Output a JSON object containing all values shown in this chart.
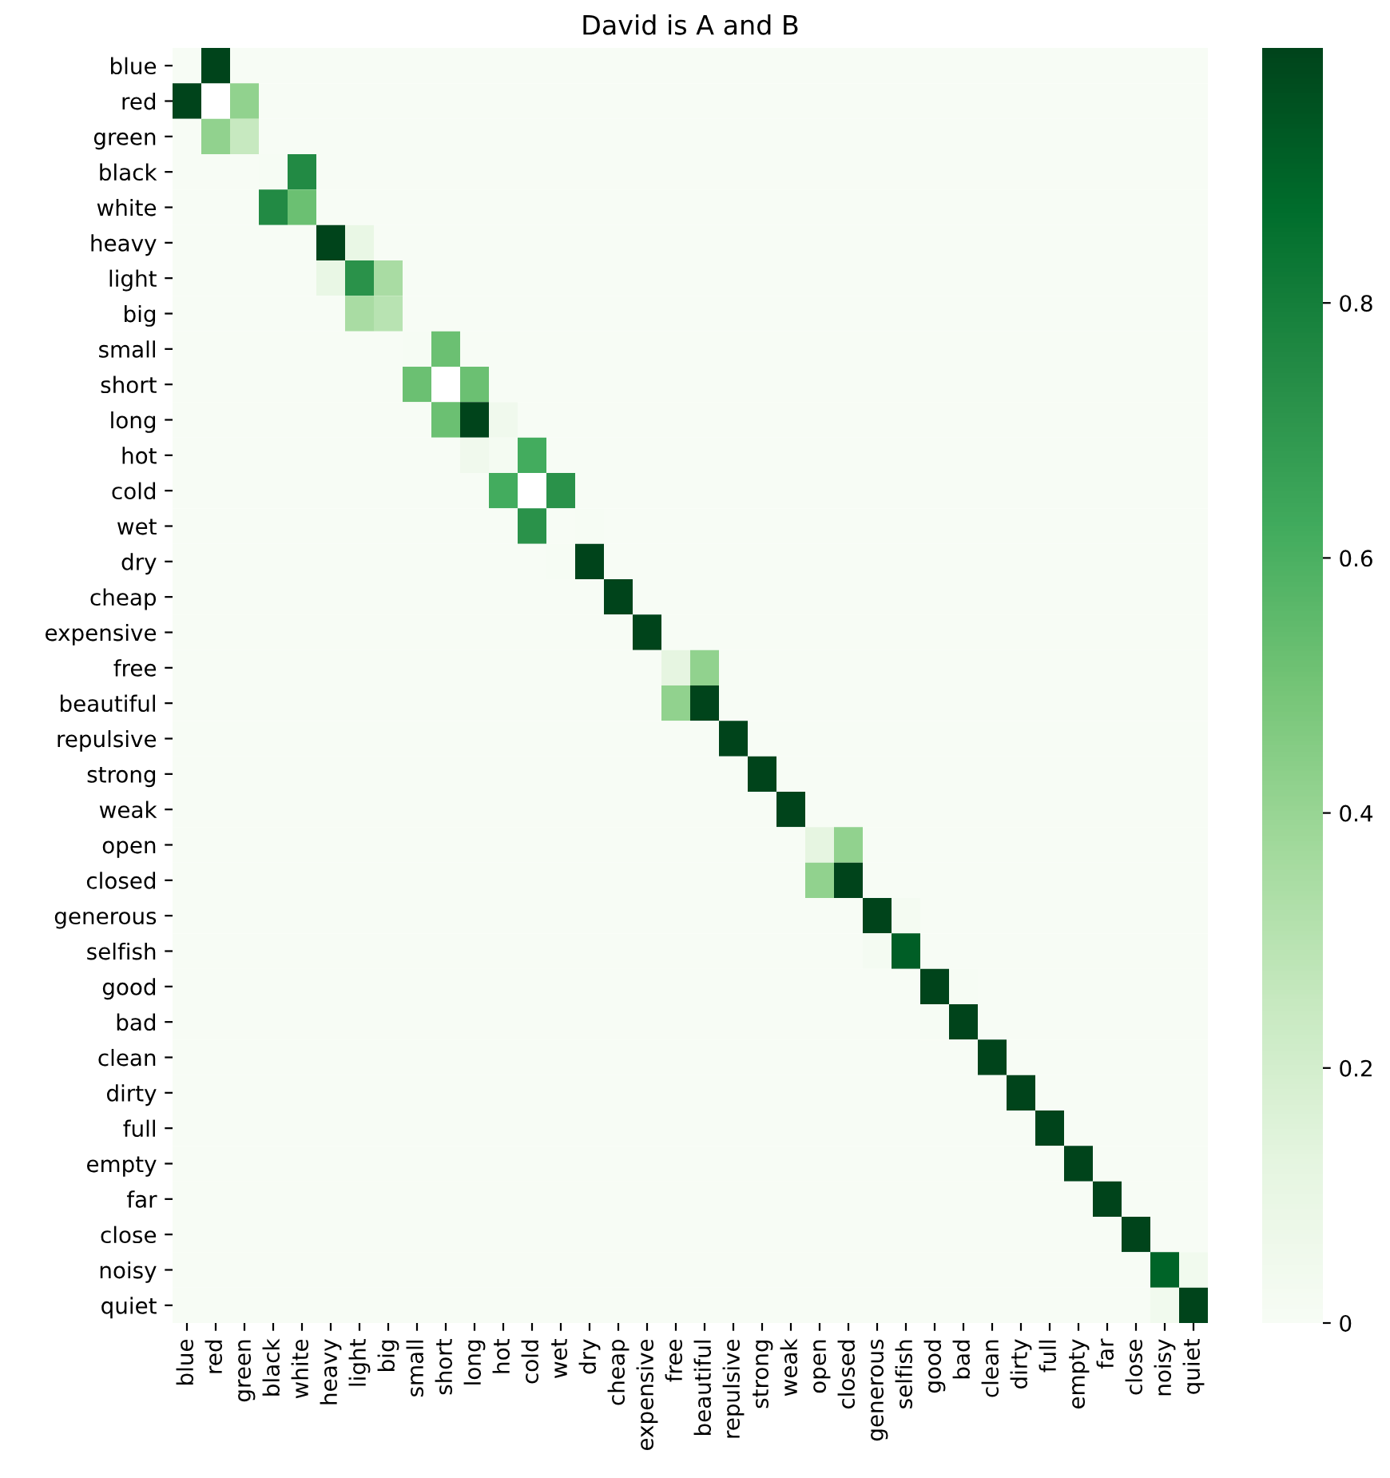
{
  "chart_data": {
    "type": "heatmap",
    "title": "David is A and B",
    "categories": [
      "blue",
      "red",
      "green",
      "black",
      "white",
      "heavy",
      "light",
      "big",
      "small",
      "short",
      "long",
      "hot",
      "cold",
      "wet",
      "dry",
      "cheap",
      "expensive",
      "free",
      "beautiful",
      "repulsive",
      "strong",
      "weak",
      "open",
      "closed",
      "generous",
      "selfish",
      "good",
      "bad",
      "clean",
      "dirty",
      "full",
      "empty",
      "far",
      "close",
      "noisy",
      "quiet"
    ],
    "y_categories": [
      "blue",
      "red",
      "green",
      "black",
      "white",
      "heavy",
      "light",
      "big",
      "small",
      "short",
      "long",
      "hot",
      "cold",
      "wet",
      "dry",
      "cheap",
      "expensive",
      "free",
      "beautiful",
      "repulsive",
      "strong",
      "weak",
      "open",
      "closed",
      "generous",
      "selfish",
      "good",
      "bad",
      "clean",
      "dirty",
      "full",
      "empty",
      "far",
      "close",
      "noisy",
      "quiet"
    ],
    "cells": [
      [
        0,
        1,
        0,
        0,
        0,
        0,
        0,
        0,
        0,
        0,
        0,
        0,
        0,
        0,
        0,
        0,
        0,
        0,
        0,
        0,
        0,
        0,
        0,
        0,
        0,
        0,
        0,
        0,
        0,
        0,
        0,
        0,
        0,
        0,
        0,
        0
      ],
      [
        1,
        null,
        0.42,
        0,
        0,
        0,
        0,
        0,
        0,
        0,
        0,
        0,
        0,
        0,
        0,
        0,
        0,
        0,
        0,
        0,
        0,
        0,
        0,
        0,
        0,
        0,
        0,
        0,
        0,
        0,
        0,
        0,
        0,
        0,
        0,
        0
      ],
      [
        0,
        0.42,
        0.25,
        0,
        0,
        0,
        0,
        0,
        0,
        0,
        0,
        0,
        0,
        0,
        0,
        0,
        0,
        0,
        0,
        0,
        0,
        0,
        0,
        0,
        0,
        0,
        0,
        0,
        0,
        0,
        0,
        0,
        0,
        0,
        0,
        0
      ],
      [
        0,
        0,
        0,
        0.01,
        0.75,
        0,
        0,
        0,
        0,
        0,
        0,
        0,
        0,
        0,
        0,
        0,
        0,
        0,
        0,
        0,
        0,
        0,
        0,
        0,
        0,
        0,
        0,
        0,
        0,
        0,
        0,
        0,
        0,
        0,
        0,
        0
      ],
      [
        0,
        0,
        0,
        0.75,
        0.52,
        0,
        0,
        0,
        0,
        0,
        0,
        0,
        0,
        0,
        0,
        0,
        0,
        0,
        0,
        0,
        0,
        0,
        0,
        0,
        0,
        0,
        0,
        0,
        0,
        0,
        0,
        0,
        0,
        0,
        0,
        0
      ],
      [
        0,
        0,
        0,
        0,
        0,
        1,
        0.1,
        0,
        0,
        0,
        0,
        0,
        0,
        0,
        0,
        0,
        0,
        0,
        0,
        0,
        0,
        0,
        0,
        0,
        0,
        0,
        0,
        0,
        0,
        0,
        0,
        0,
        0,
        0,
        0,
        0
      ],
      [
        0,
        0,
        0,
        0,
        0,
        0.1,
        0.72,
        0.35,
        0,
        0,
        0,
        0,
        0,
        0,
        0,
        0,
        0,
        0,
        0,
        0,
        0,
        0,
        0,
        0,
        0,
        0,
        0,
        0,
        0,
        0,
        0,
        0,
        0,
        0,
        0,
        0
      ],
      [
        0,
        0,
        0,
        0,
        0,
        0,
        0.35,
        0.3,
        0,
        0,
        0,
        0,
        0,
        0,
        0,
        0,
        0,
        0,
        0,
        0,
        0,
        0,
        0,
        0,
        0,
        0,
        0,
        0,
        0,
        0,
        0,
        0,
        0,
        0,
        0,
        0
      ],
      [
        0,
        0,
        0,
        0,
        0,
        0,
        0,
        0,
        0.01,
        0.52,
        0,
        0,
        0,
        0,
        0,
        0,
        0,
        0,
        0,
        0,
        0,
        0,
        0,
        0,
        0,
        0,
        0,
        0,
        0,
        0,
        0,
        0,
        0,
        0,
        0,
        0
      ],
      [
        0,
        0,
        0,
        0,
        0,
        0,
        0,
        0,
        0.52,
        null,
        0.52,
        0,
        0,
        0,
        0,
        0,
        0,
        0,
        0,
        0,
        0,
        0,
        0,
        0,
        0,
        0,
        0,
        0,
        0,
        0,
        0,
        0,
        0,
        0,
        0,
        0
      ],
      [
        0,
        0,
        0,
        0,
        0,
        0,
        0,
        0,
        0,
        0.52,
        1,
        0.05,
        0,
        0,
        0,
        0,
        0,
        0,
        0,
        0,
        0,
        0,
        0,
        0,
        0,
        0,
        0,
        0,
        0,
        0,
        0,
        0,
        0,
        0,
        0,
        0
      ],
      [
        0,
        0,
        0,
        0,
        0,
        0,
        0,
        0,
        0,
        0,
        0.05,
        0.02,
        0.62,
        0,
        0,
        0,
        0,
        0,
        0,
        0,
        0,
        0,
        0,
        0,
        0,
        0,
        0,
        0,
        0,
        0,
        0,
        0,
        0,
        0,
        0,
        0
      ],
      [
        0,
        0,
        0,
        0,
        0,
        0,
        0,
        0,
        0,
        0,
        0,
        0.62,
        null,
        0.72,
        0,
        0,
        0,
        0,
        0,
        0,
        0,
        0,
        0,
        0,
        0,
        0,
        0,
        0,
        0,
        0,
        0,
        0,
        0,
        0,
        0,
        0
      ],
      [
        0,
        0,
        0,
        0,
        0,
        0,
        0,
        0,
        0,
        0,
        0,
        0,
        0.72,
        0,
        0.01,
        0,
        0,
        0,
        0,
        0,
        0,
        0,
        0,
        0,
        0,
        0,
        0,
        0,
        0,
        0,
        0,
        0,
        0,
        0,
        0,
        0
      ],
      [
        0,
        0,
        0,
        0,
        0,
        0,
        0,
        0,
        0,
        0,
        0,
        0,
        0,
        0.01,
        1,
        0,
        0,
        0,
        0,
        0,
        0,
        0,
        0,
        0,
        0,
        0,
        0,
        0,
        0,
        0,
        0,
        0,
        0,
        0,
        0,
        0
      ],
      [
        0,
        0,
        0,
        0,
        0,
        0,
        0,
        0,
        0,
        0,
        0,
        0,
        0,
        0,
        0,
        1,
        0,
        0,
        0,
        0,
        0,
        0,
        0,
        0,
        0,
        0,
        0,
        0,
        0,
        0,
        0,
        0,
        0,
        0,
        0,
        0
      ],
      [
        0,
        0,
        0,
        0,
        0,
        0,
        0,
        0,
        0,
        0,
        0,
        0,
        0,
        0,
        0,
        0,
        1,
        0,
        0,
        0,
        0,
        0,
        0,
        0,
        0,
        0,
        0,
        0,
        0,
        0,
        0,
        0,
        0,
        0,
        0,
        0
      ],
      [
        0,
        0,
        0,
        0,
        0,
        0,
        0,
        0,
        0,
        0,
        0,
        0,
        0,
        0,
        0,
        0,
        0,
        0.12,
        0.42,
        0,
        0,
        0,
        0,
        0,
        0,
        0,
        0,
        0,
        0,
        0,
        0,
        0,
        0,
        0,
        0,
        0
      ],
      [
        0,
        0,
        0,
        0,
        0,
        0,
        0,
        0,
        0,
        0,
        0,
        0,
        0,
        0,
        0,
        0,
        0,
        0.42,
        1,
        0,
        0,
        0,
        0,
        0,
        0,
        0,
        0,
        0,
        0,
        0,
        0,
        0,
        0,
        0,
        0,
        0
      ],
      [
        0,
        0,
        0,
        0,
        0,
        0,
        0,
        0,
        0,
        0,
        0,
        0,
        0,
        0,
        0,
        0,
        0,
        0,
        0,
        1,
        0,
        0,
        0,
        0,
        0,
        0,
        0,
        0,
        0,
        0,
        0,
        0,
        0,
        0,
        0,
        0
      ],
      [
        0,
        0,
        0,
        0,
        0,
        0,
        0,
        0,
        0,
        0,
        0,
        0,
        0,
        0,
        0,
        0,
        0,
        0,
        0,
        0,
        1,
        0,
        0,
        0,
        0,
        0,
        0,
        0,
        0,
        0,
        0,
        0,
        0,
        0,
        0,
        0
      ],
      [
        0,
        0,
        0,
        0,
        0,
        0,
        0,
        0,
        0,
        0,
        0,
        0,
        0,
        0,
        0,
        0,
        0,
        0,
        0,
        0,
        0,
        1,
        0,
        0,
        0,
        0,
        0,
        0,
        0,
        0,
        0,
        0,
        0,
        0,
        0,
        0
      ],
      [
        0,
        0,
        0,
        0,
        0,
        0,
        0,
        0,
        0,
        0,
        0,
        0,
        0,
        0,
        0,
        0,
        0,
        0,
        0,
        0,
        0,
        0,
        0.12,
        0.42,
        0,
        0,
        0,
        0,
        0,
        0,
        0,
        0,
        0,
        0,
        0,
        0
      ],
      [
        0,
        0,
        0,
        0,
        0,
        0,
        0,
        0,
        0,
        0,
        0,
        0,
        0,
        0,
        0,
        0,
        0,
        0,
        0,
        0,
        0,
        0,
        0.42,
        1,
        0,
        0,
        0,
        0,
        0,
        0,
        0,
        0,
        0,
        0,
        0,
        0
      ],
      [
        0,
        0,
        0,
        0,
        0,
        0,
        0,
        0,
        0,
        0,
        0,
        0,
        0,
        0,
        0,
        0,
        0,
        0,
        0,
        0,
        0,
        0,
        0,
        0,
        1,
        0.02,
        0,
        0,
        0,
        0,
        0,
        0,
        0,
        0,
        0,
        0
      ],
      [
        0,
        0,
        0,
        0,
        0,
        0,
        0,
        0,
        0,
        0,
        0,
        0,
        0,
        0,
        0,
        0,
        0,
        0,
        0,
        0,
        0,
        0,
        0,
        0,
        0.02,
        0.92,
        0,
        0,
        0,
        0,
        0,
        0,
        0,
        0,
        0,
        0
      ],
      [
        0,
        0,
        0,
        0,
        0,
        0,
        0,
        0,
        0,
        0,
        0,
        0,
        0,
        0,
        0,
        0,
        0,
        0,
        0,
        0,
        0,
        0,
        0,
        0,
        0,
        0,
        1,
        0.01,
        0,
        0,
        0,
        0,
        0,
        0,
        0,
        0
      ],
      [
        0,
        0,
        0,
        0,
        0,
        0,
        0,
        0,
        0,
        0,
        0,
        0,
        0,
        0,
        0,
        0,
        0,
        0,
        0,
        0,
        0,
        0,
        0,
        0,
        0,
        0,
        0.01,
        1,
        0,
        0,
        0,
        0,
        0,
        0,
        0,
        0
      ],
      [
        0,
        0,
        0,
        0,
        0,
        0,
        0,
        0,
        0,
        0,
        0,
        0,
        0,
        0,
        0,
        0,
        0,
        0,
        0,
        0,
        0,
        0,
        0,
        0,
        0,
        0,
        0,
        0,
        1,
        0,
        0,
        0,
        0,
        0,
        0,
        0
      ],
      [
        0,
        0,
        0,
        0,
        0,
        0,
        0,
        0,
        0,
        0,
        0,
        0,
        0,
        0,
        0,
        0,
        0,
        0,
        0,
        0,
        0,
        0,
        0,
        0,
        0,
        0,
        0,
        0,
        0,
        1,
        0,
        0,
        0,
        0,
        0,
        0
      ],
      [
        0,
        0,
        0,
        0,
        0,
        0,
        0,
        0,
        0,
        0,
        0,
        0,
        0,
        0,
        0,
        0,
        0,
        0,
        0,
        0,
        0,
        0,
        0,
        0,
        0,
        0,
        0,
        0,
        0,
        0,
        1,
        0,
        0,
        0,
        0,
        0
      ],
      [
        0,
        0,
        0,
        0,
        0,
        0,
        0,
        0,
        0,
        0,
        0,
        0,
        0,
        0,
        0,
        0,
        0,
        0,
        0,
        0,
        0,
        0,
        0,
        0,
        0,
        0,
        0,
        0,
        0,
        0,
        0,
        1,
        0,
        0,
        0,
        0
      ],
      [
        0,
        0,
        0,
        0,
        0,
        0,
        0,
        0,
        0,
        0,
        0,
        0,
        0,
        0,
        0,
        0,
        0,
        0,
        0,
        0,
        0,
        0,
        0,
        0,
        0,
        0,
        0,
        0,
        0,
        0,
        0,
        0,
        1,
        0,
        0,
        0
      ],
      [
        0,
        0,
        0,
        0,
        0,
        0,
        0,
        0,
        0,
        0,
        0,
        0,
        0,
        0,
        0,
        0,
        0,
        0,
        0,
        0,
        0,
        0,
        0,
        0,
        0,
        0,
        0,
        0,
        0,
        0,
        0,
        0,
        0,
        1,
        0,
        0
      ],
      [
        0,
        0,
        0,
        0,
        0,
        0,
        0,
        0,
        0,
        0,
        0,
        0,
        0,
        0,
        0,
        0,
        0,
        0,
        0,
        0,
        0,
        0,
        0,
        0,
        0,
        0,
        0,
        0,
        0,
        0,
        0,
        0,
        0,
        0,
        0.9,
        0.04
      ],
      [
        0,
        0,
        0,
        0,
        0,
        0,
        0,
        0,
        0,
        0,
        0,
        0,
        0,
        0,
        0,
        0,
        0,
        0,
        0,
        0,
        0,
        0,
        0,
        0,
        0,
        0,
        0,
        0,
        0,
        0,
        0,
        0,
        0,
        0,
        0.04,
        1
      ]
    ],
    "clim": [
      0,
      1
    ],
    "cticks": [
      0,
      0.2,
      0.4,
      0.6,
      0.8
    ]
  }
}
